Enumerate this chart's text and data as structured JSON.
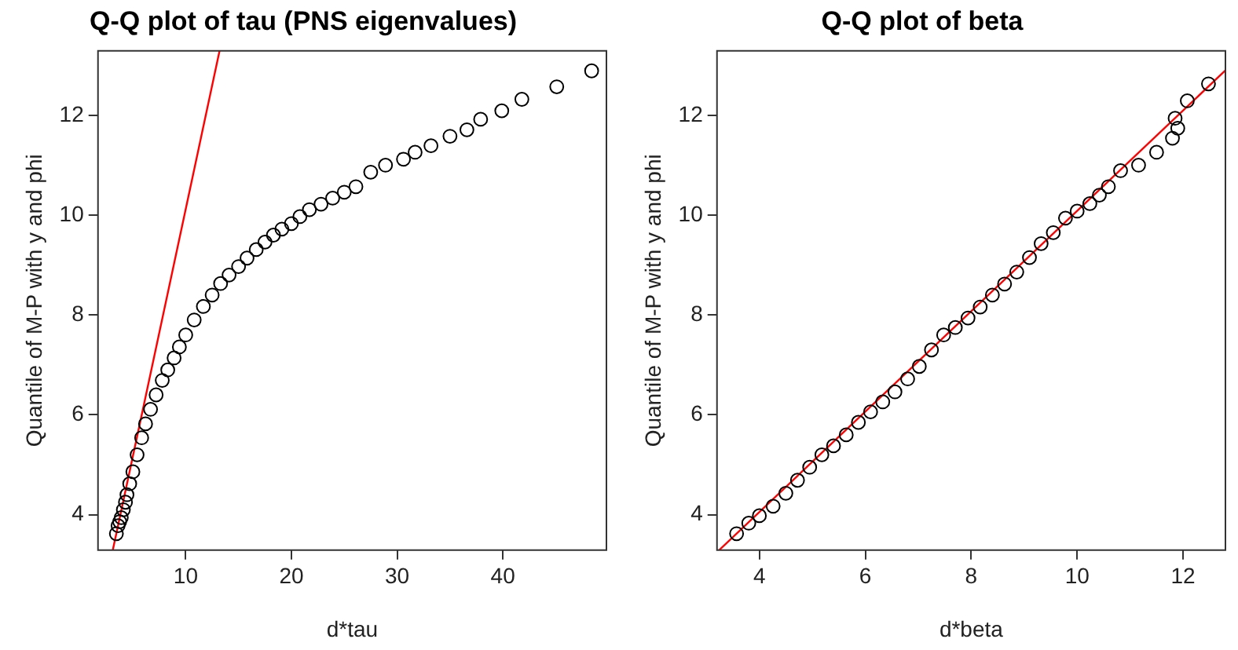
{
  "chart_data": [
    {
      "type": "scatter",
      "title": "Q-Q plot of tau (PNS eigenvalues)",
      "xlabel": "d*tau",
      "ylabel": "Quantile of M-P with y and phi",
      "xlim": [
        1.7,
        49.8
      ],
      "ylim": [
        3.29,
        13.29
      ],
      "xticks": [
        10,
        20,
        30,
        40
      ],
      "yticks": [
        4,
        6,
        8,
        10,
        12
      ],
      "grid": false,
      "legend": false,
      "series": [
        {
          "marker": "circle",
          "color": "#000000",
          "x": [
            3.44,
            3.6,
            3.75,
            3.9,
            4.1,
            4.3,
            4.44,
            4.7,
            5.0,
            5.4,
            5.83,
            6.2,
            6.67,
            7.2,
            7.78,
            8.3,
            8.9,
            9.4,
            10,
            10.8,
            11.67,
            12.5,
            13.3,
            14.1,
            15,
            15.8,
            16.67,
            17.5,
            18.3,
            19.1,
            20,
            20.8,
            21.7,
            22.8,
            23.9,
            25,
            26.1,
            27.5,
            28.9,
            30.6,
            31.7,
            33.2,
            35,
            36.6,
            37.9,
            39.9,
            41.8,
            45.1,
            48.4
          ],
          "values": [
            3.62,
            3.78,
            3.86,
            3.94,
            4.1,
            4.25,
            4.4,
            4.62,
            4.86,
            5.2,
            5.54,
            5.82,
            6.11,
            6.4,
            6.69,
            6.9,
            7.14,
            7.36,
            7.6,
            7.9,
            8.17,
            8.4,
            8.63,
            8.8,
            8.97,
            9.14,
            9.31,
            9.46,
            9.6,
            9.72,
            9.83,
            9.97,
            10.11,
            10.22,
            10.34,
            10.46,
            10.57,
            10.86,
            11.0,
            11.12,
            11.26,
            11.39,
            11.58,
            11.71,
            11.92,
            12.09,
            12.32,
            12.57,
            12.89
          ]
        },
        {
          "type": "line",
          "marker": "none",
          "color": "#ff0000",
          "x": [
            3.1,
            13.2
          ],
          "values": [
            3.29,
            13.29
          ]
        }
      ]
    },
    {
      "type": "scatter",
      "title": "Q-Q plot of beta",
      "xlabel": "d*beta",
      "ylabel": "Quantile of M-P with y and phi",
      "xlim": [
        3.2,
        12.8
      ],
      "ylim": [
        3.29,
        13.29
      ],
      "xticks": [
        4,
        6,
        8,
        10,
        12
      ],
      "yticks": [
        4,
        6,
        8,
        10,
        12
      ],
      "grid": false,
      "legend": false,
      "series": [
        {
          "marker": "circle",
          "color": "#000000",
          "x": [
            3.57,
            3.8,
            4.0,
            4.26,
            4.5,
            4.72,
            4.95,
            5.18,
            5.4,
            5.64,
            5.87,
            6.1,
            6.33,
            6.56,
            6.8,
            7.02,
            7.25,
            7.48,
            7.7,
            7.94,
            8.17,
            8.4,
            8.63,
            8.86,
            9.1,
            9.32,
            9.55,
            9.78,
            10.0,
            10.24,
            10.42,
            10.59,
            10.82,
            11.16,
            11.5,
            11.8,
            11.9,
            11.85,
            12.08,
            12.48
          ],
          "values": [
            3.62,
            3.83,
            3.98,
            4.17,
            4.43,
            4.69,
            4.95,
            5.2,
            5.38,
            5.6,
            5.85,
            6.06,
            6.26,
            6.46,
            6.72,
            6.97,
            7.3,
            7.6,
            7.75,
            7.94,
            8.16,
            8.4,
            8.62,
            8.86,
            9.15,
            9.43,
            9.65,
            9.94,
            10.08,
            10.23,
            10.4,
            10.57,
            10.89,
            11.0,
            11.26,
            11.54,
            11.74,
            11.94,
            12.29,
            12.63
          ]
        },
        {
          "type": "line",
          "marker": "none",
          "color": "#ff0000",
          "x": [
            3.24,
            12.8
          ],
          "values": [
            3.29,
            12.9
          ]
        }
      ]
    }
  ]
}
